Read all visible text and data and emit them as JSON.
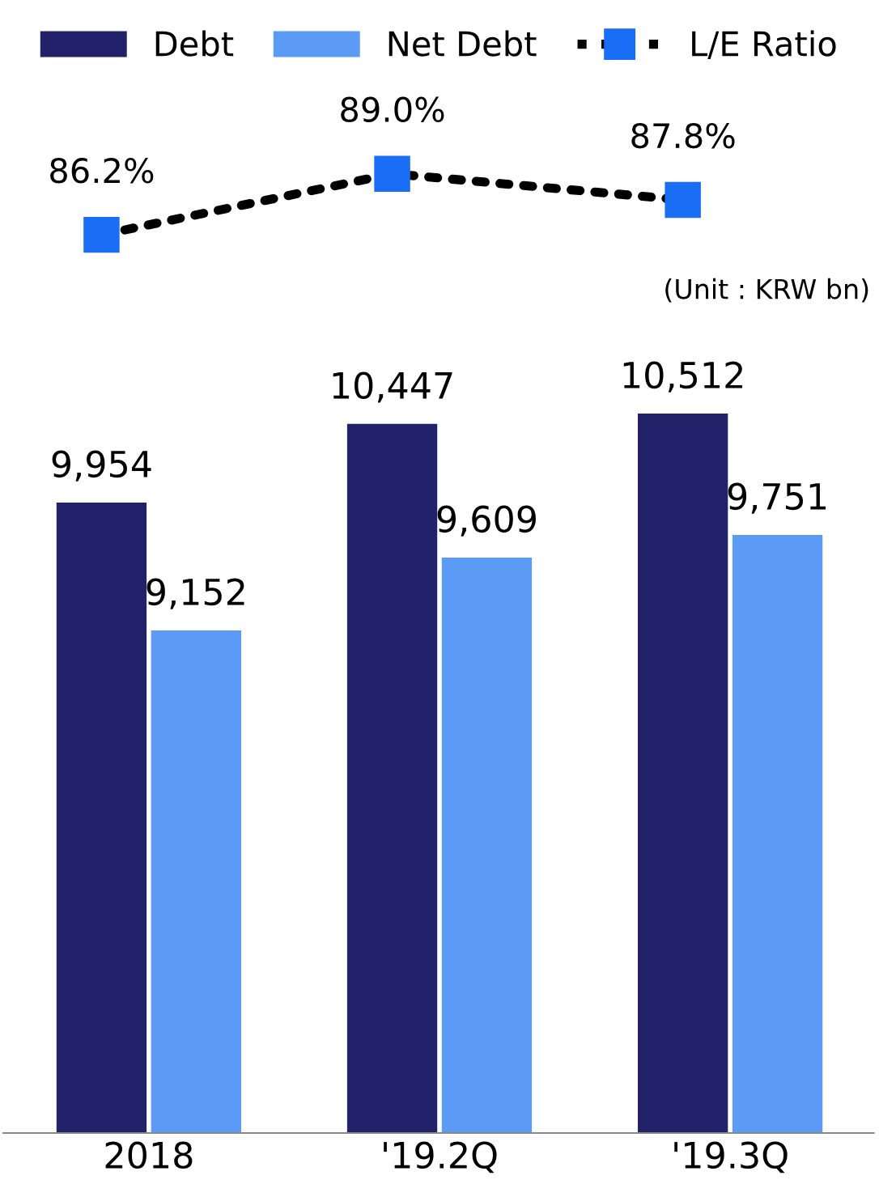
{
  "chart_data": {
    "type": "bar",
    "categories": [
      "2018",
      "'19.2Q",
      "'19.3Q"
    ],
    "series": [
      {
        "name": "Debt",
        "color": "#22226a",
        "values": [
          9954,
          10447,
          10512
        ],
        "value_labels": [
          "9,954",
          "10,447",
          "10,512"
        ]
      },
      {
        "name": "Net Debt",
        "color": "#5b9bf5",
        "values": [
          9152,
          9609,
          9751
        ],
        "value_labels": [
          "9,152",
          "9,609",
          "9,751"
        ]
      },
      {
        "name": "L/E Ratio",
        "type": "line",
        "axis": "y2",
        "color": "#1a6ef5",
        "values": [
          86.2,
          89.0,
          87.8
        ],
        "value_labels": [
          "86.2%",
          "89.0%",
          "87.8%"
        ],
        "marker": "square",
        "line_style": "dotted"
      }
    ],
    "ylim": [
      6000,
      12700
    ],
    "y2lim": [
      45,
      94
    ],
    "tick_labels": "x",
    "grid": false,
    "legend": "top",
    "annotations": [
      "(Unit : KRW bn)"
    ]
  }
}
